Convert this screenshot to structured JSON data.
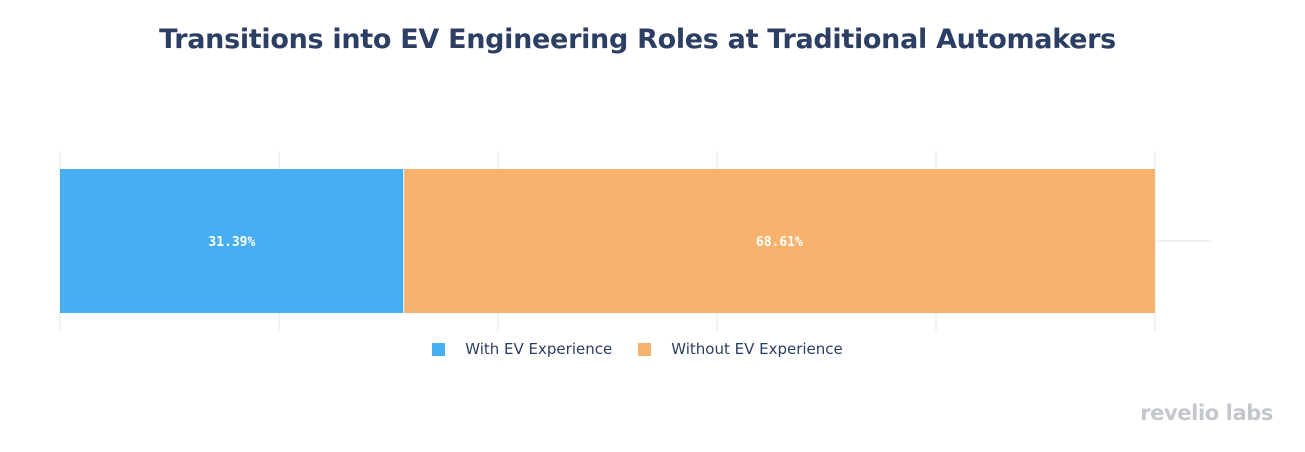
{
  "colors": {
    "title": "#2c3e63",
    "with_ev": "#48aef3",
    "without_ev": "#f7b26e",
    "grid": "#e6e6e6",
    "brand": "#c4c7cc"
  },
  "chart_data": {
    "type": "bar",
    "orientation": "horizontal",
    "stacked": true,
    "title": "Transitions into EV Engineering Roles at Traditional Automakers",
    "xlim": [
      0,
      100
    ],
    "grid": true,
    "legend_position": "bottom",
    "series": [
      {
        "name": "With EV Experience",
        "value": 31.39,
        "label": "31.39%",
        "color": "#48aef3"
      },
      {
        "name": "Without EV Experience",
        "value": 68.61,
        "label": "68.61%",
        "color": "#f7b26e"
      }
    ]
  },
  "brand": "revelio labs"
}
